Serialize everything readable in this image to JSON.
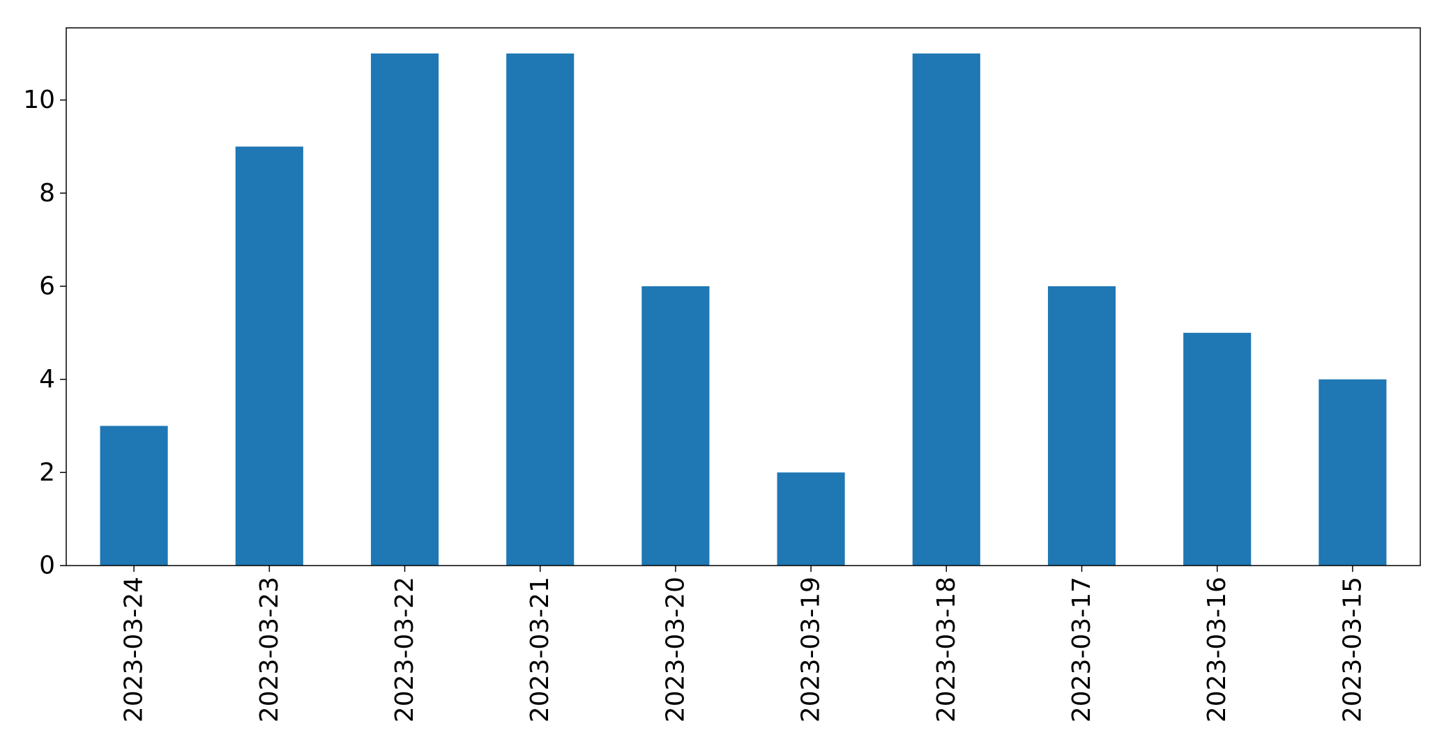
{
  "chart_data": {
    "type": "bar",
    "title": "",
    "xlabel": "",
    "ylabel": "",
    "categories": [
      "2023-03-24",
      "2023-03-23",
      "2023-03-22",
      "2023-03-21",
      "2023-03-20",
      "2023-03-19",
      "2023-03-18",
      "2023-03-17",
      "2023-03-16",
      "2023-03-15"
    ],
    "values": [
      3,
      9,
      11,
      11,
      6,
      2,
      11,
      6,
      5,
      4
    ],
    "ylim": [
      0,
      11.55
    ],
    "yticks": [
      0,
      2,
      4,
      6,
      8,
      10
    ],
    "ytick_labels": [
      "0",
      "2",
      "4",
      "6",
      "8",
      "10"
    ],
    "grid": false,
    "legend": "none",
    "bar_color": "#1f77b4",
    "x_tick_rotation": "vertical"
  }
}
